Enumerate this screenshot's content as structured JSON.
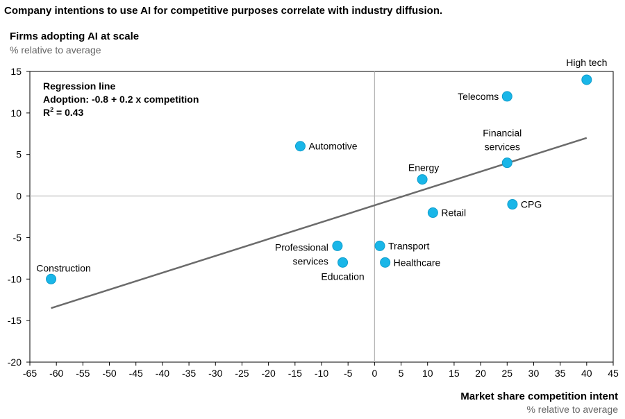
{
  "chart_data": {
    "type": "scatter",
    "title": "Company intentions to use AI for competitive purposes correlate with industry diffusion.",
    "ylabel": "Firms adopting AI at scale",
    "ylabel_sub": "% relative to average",
    "xlabel": "Market share competition intent",
    "xlabel_sub": "% relative to average",
    "xlim": [
      -65,
      45
    ],
    "ylim": [
      -20,
      15
    ],
    "xticks": [
      -65,
      -60,
      -55,
      -50,
      -45,
      -40,
      -35,
      -30,
      -25,
      -20,
      -15,
      -10,
      -5,
      0,
      5,
      10,
      15,
      20,
      25,
      30,
      35,
      40,
      45
    ],
    "yticks": [
      15,
      10,
      5,
      0,
      -5,
      -10,
      -15,
      -20
    ],
    "point_color": "#19b6e8",
    "points": [
      {
        "label": "High tech",
        "x": 40,
        "y": 14
      },
      {
        "label": "Telecoms",
        "x": 25,
        "y": 12
      },
      {
        "label": "Automotive",
        "x": -14,
        "y": 6
      },
      {
        "label": "Financial services",
        "label_lines": [
          "Financial",
          "services"
        ],
        "x": 25,
        "y": 4
      },
      {
        "label": "Energy",
        "x": 9,
        "y": 2
      },
      {
        "label": "CPG",
        "x": 26,
        "y": -1
      },
      {
        "label": "Retail",
        "x": 11,
        "y": -2
      },
      {
        "label": "Professional services",
        "label_lines": [
          "Professional",
          "services"
        ],
        "x": -7,
        "y": -6
      },
      {
        "label": "Transport",
        "x": 1,
        "y": -6
      },
      {
        "label": "Education",
        "x": -6,
        "y": -8
      },
      {
        "label": "Healthcare",
        "x": 2,
        "y": -8
      },
      {
        "label": "Construction",
        "x": -61,
        "y": -10
      }
    ],
    "regression": {
      "heading": "Regression line",
      "equation": "Adoption: -0.8 + 0.2 x competition",
      "r2_prefix": "R",
      "r2_sup": "2",
      "r2_suffix": " = 0.43",
      "x_start": -61,
      "x_end": 40,
      "y_start": -13.5,
      "y_end": 7
    }
  }
}
